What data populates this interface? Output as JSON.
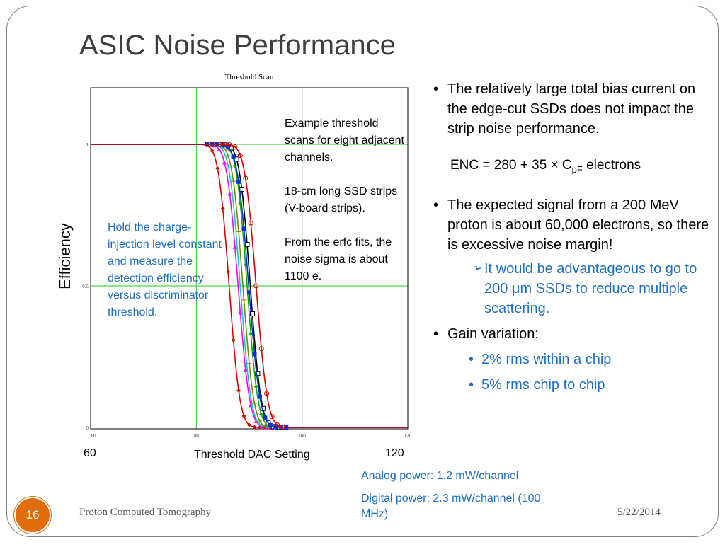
{
  "slide": {
    "title": "ASIC Noise Performance",
    "page_number": "16",
    "footer_left": "Proton Computed Tomography",
    "footer_right": "5/22/2014"
  },
  "chart_data": {
    "type": "line",
    "title": "Threshold Scan",
    "xlabel": "Threshold DAC Setting",
    "ylabel": "Efficiency",
    "xlim": [
      60,
      120
    ],
    "ylim": [
      0,
      1.0
    ],
    "x_ticks": [
      "60",
      "80",
      "100",
      "120"
    ],
    "y_ticks": [
      "0",
      "0.5",
      "1"
    ],
    "x_range_labels": [
      "60",
      "120"
    ],
    "grid": true,
    "series": [
      {
        "color": "#d40000",
        "marker": "diamond",
        "mid": 86.2,
        "sigma": 1.6
      },
      {
        "color": "#ff00ff",
        "marker": "triangle",
        "mid": 87.9,
        "sigma": 1.7
      },
      {
        "color": "#00cccc",
        "marker": "none",
        "mid": 88.3,
        "sigma": 1.6
      },
      {
        "color": "#808000",
        "marker": "plus",
        "mid": 88.8,
        "sigma": 1.6
      },
      {
        "color": "#00b000",
        "marker": "diamond",
        "mid": 89.6,
        "sigma": 1.6
      },
      {
        "color": "#000000",
        "marker": "square-open",
        "mid": 90.2,
        "sigma": 1.6
      },
      {
        "color": "#0033cc",
        "marker": "square",
        "mid": 89.9,
        "sigma": 1.7
      },
      {
        "color": "#d40000",
        "marker": "circle-open",
        "mid": 91.3,
        "sigma": 1.7
      }
    ]
  },
  "notes": {
    "blue_note": "Hold the charge-injection level constant and measure the detection efficiency versus discriminator threshold.",
    "example_1": "Example threshold scans for eight adjacent channels.",
    "example_2": "18-cm long SSD strips (V-board strips).",
    "example_3": "From the erfc fits, the noise sigma is about 1100 e."
  },
  "bullets": {
    "b1": "The relatively large total bias current on the edge-cut SSDs does not impact the strip noise performance.",
    "enc_prefix": "ENC = 280 + 35 × C",
    "enc_sub": "pF",
    "enc_suffix": "  electrons",
    "b2": "The expected signal from a 200 MeV proton is about 60,000 electrons, so there is excessive noise margin!",
    "b2_sub": "It would be advantageous to go to 200 μm SSDs to reduce multiple scattering.",
    "b3": "Gain variation:",
    "b3_sub1": "2% rms within a chip",
    "b3_sub2": "5% rms chip to chip"
  },
  "power": {
    "analog": "Analog power: 1.2 mW/channel",
    "digital": "Digital power: 2.3 mW/channel (100 MHz)"
  }
}
